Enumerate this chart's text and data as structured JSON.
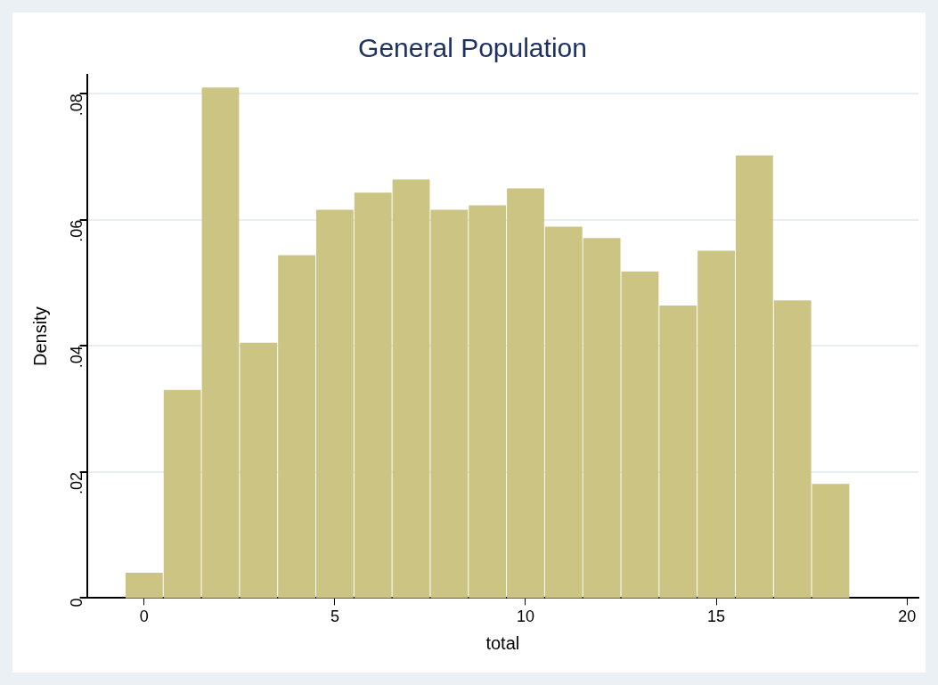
{
  "chart_data": {
    "type": "histogram",
    "title": "General Population",
    "xlabel": "total",
    "ylabel": "Density",
    "bins": [
      -0.5,
      0.5,
      1.5,
      2.5,
      3.5,
      4.5,
      5.5,
      6.5,
      7.5,
      8.5,
      9.5,
      10.5,
      11.5,
      12.5,
      13.5,
      14.5,
      15.5,
      16.5,
      17.5,
      18.5
    ],
    "values": [
      0.004,
      0.033,
      0.081,
      0.0405,
      0.0544,
      0.0616,
      0.0643,
      0.0664,
      0.0616,
      0.0623,
      0.065,
      0.0589,
      0.0571,
      0.0518,
      0.0464,
      0.0551,
      0.0702,
      0.0472,
      0.0181
    ],
    "color": "#ccc482",
    "xlim": [
      -1.5,
      20.3
    ],
    "xticks": [
      0,
      5,
      10,
      15,
      20
    ],
    "ylim": [
      0,
      0.083
    ],
    "yticks": [
      0,
      {
        "value": 0.02,
        "label": ".02"
      },
      {
        "value": 0.04,
        "label": ".04"
      },
      {
        "value": 0.06,
        "label": ".06"
      },
      {
        "value": 0.08,
        "label": ".08"
      }
    ],
    "grid": "y"
  }
}
